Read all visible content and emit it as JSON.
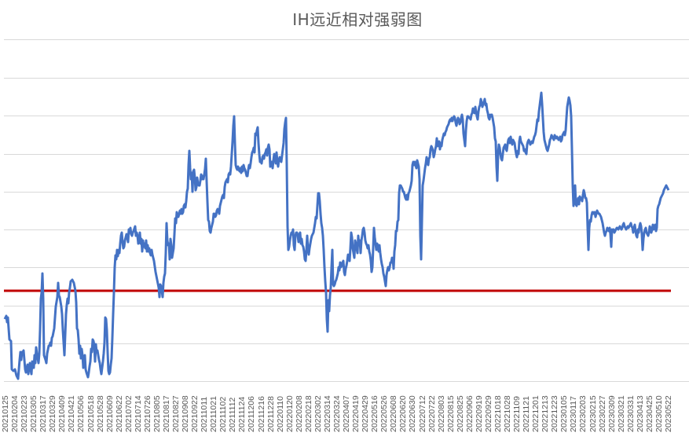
{
  "chart_data": {
    "type": "line",
    "title": "IH远近相对强弱图",
    "xlabel": "",
    "ylabel": "",
    "grid": true,
    "legend": null,
    "categories": [
      "20210125",
      "20210204",
      "20210223",
      "20210305",
      "20210317",
      "20210329",
      "20210409",
      "20210421",
      "20210506",
      "20210518",
      "20210528",
      "20210609",
      "20210622",
      "20210702",
      "20210714",
      "20210726",
      "20210805",
      "20210817",
      "20210827",
      "20210908",
      "20210922",
      "20211011",
      "20211021",
      "20211102",
      "20211112",
      "20211124",
      "20211206",
      "20211216",
      "20211228",
      "20220110",
      "20220120",
      "20220208",
      "20220218",
      "20220302",
      "20220314",
      "20220324",
      "20220407",
      "20220419",
      "20220429",
      "20220516",
      "20220526",
      "20220608",
      "20220620",
      "20220630",
      "20220712",
      "20220722",
      "20220803",
      "20220815",
      "20220825",
      "20220906",
      "20220919",
      "20220929",
      "20221018",
      "20221028",
      "20221109",
      "20221121",
      "20221201",
      "20221213",
      "20221223",
      "20230105",
      "20230117",
      "20230203",
      "20230215",
      "20230227",
      "20230309",
      "20230321",
      "20230331",
      "20230413",
      "20230425",
      "20230510",
      "20230522"
    ],
    "series": [
      {
        "name": "IH远近相对强弱",
        "color": "#4472C4",
        "note": "relative strength, y in gridline units (0 = bottom gridline, 9 = top gridline); y-axis tick labels not visible",
        "values": [
          1.7,
          0.4,
          1.1,
          0.6,
          2.9,
          0.9,
          1.2,
          2.7,
          2.6,
          1.6,
          0.1,
          0.5,
          2.6,
          3.1,
          3.8,
          3.6,
          3.1,
          2.4,
          3.2,
          3.4,
          5.0,
          4.8,
          4.4,
          5.9,
          6.4,
          6.9,
          6.2,
          6.4,
          6.1,
          3.6,
          3.8,
          3.4,
          3.6,
          4.6,
          2.4,
          3.0,
          3.2,
          3.5,
          3.4,
          3.6,
          2.8,
          5.2,
          5.0,
          5.3,
          5.5,
          6.2,
          6.3,
          6.6,
          6.6,
          7.1,
          7.2,
          7.0,
          5.5,
          5.5,
          6.0,
          6.4,
          6.1,
          7.5,
          6.4,
          7.3,
          7.3,
          4.7,
          4.3,
          3.9,
          4.0,
          3.9,
          4.1,
          3.7,
          3.9,
          4.1,
          5.1
        ]
      },
      {
        "name": "基准线",
        "color": "#C00000",
        "type": "hline",
        "value": 2.4
      }
    ],
    "ylim": [
      0,
      9
    ],
    "gridlines_count": 10
  }
}
